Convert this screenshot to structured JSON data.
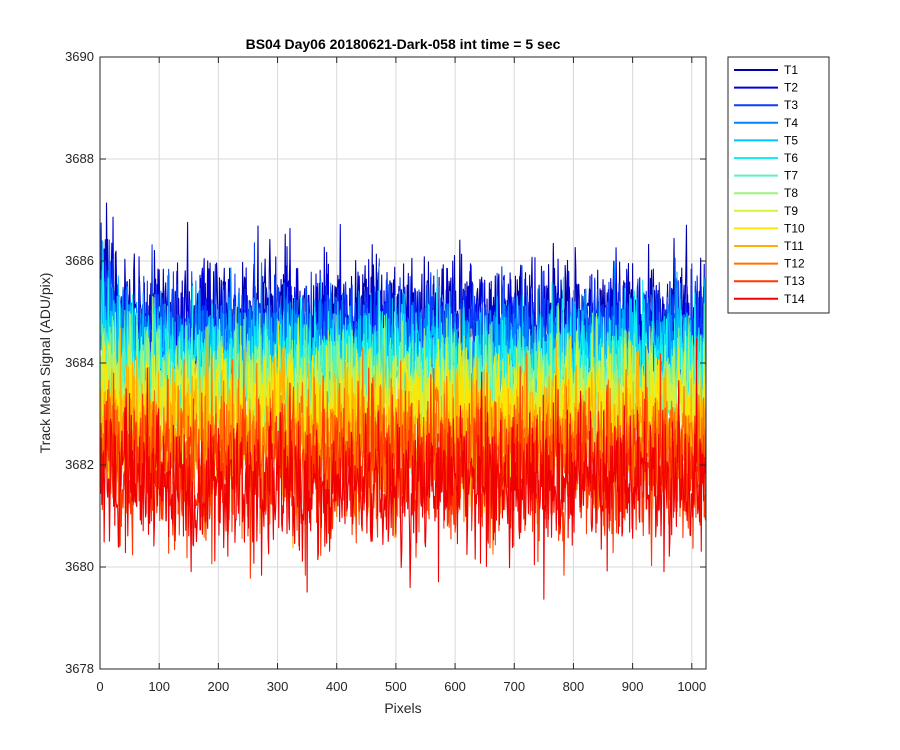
{
  "chart_data": {
    "type": "line",
    "title": "BS04 Day06 20180621-Dark-058 int time = 5 sec",
    "xlabel": "Pixels",
    "ylabel": "Track Mean Signal (ADU/pix)",
    "xlim": [
      0,
      1024
    ],
    "ylim": [
      3678,
      3690
    ],
    "xticks": [
      "0",
      "100",
      "200",
      "300",
      "400",
      "500",
      "600",
      "700",
      "800",
      "900",
      "1000"
    ],
    "yticks": [
      "3678",
      "3680",
      "3682",
      "3684",
      "3686",
      "3688",
      "3690"
    ],
    "grid": true,
    "legend_position": "outside-top-right",
    "x_count": 1024,
    "series": [
      {
        "name": "T1",
        "color": "#0000a8",
        "mean": 3684.9,
        "amplitude": 0.9
      },
      {
        "name": "T2",
        "color": "#0000dc",
        "mean": 3684.7,
        "amplitude": 0.9
      },
      {
        "name": "T3",
        "color": "#0a3cff",
        "mean": 3684.5,
        "amplitude": 0.9
      },
      {
        "name": "T4",
        "color": "#0082ff",
        "mean": 3684.3,
        "amplitude": 0.9
      },
      {
        "name": "T5",
        "color": "#00c0ff",
        "mean": 3684.1,
        "amplitude": 0.9
      },
      {
        "name": "T6",
        "color": "#14f0f0",
        "mean": 3683.9,
        "amplitude": 0.9
      },
      {
        "name": "T7",
        "color": "#5cf2b8",
        "mean": 3683.6,
        "amplitude": 0.9
      },
      {
        "name": "T8",
        "color": "#9ef27a",
        "mean": 3683.4,
        "amplitude": 0.9
      },
      {
        "name": "T9",
        "color": "#d8f23a",
        "mean": 3683.2,
        "amplitude": 0.9
      },
      {
        "name": "T10",
        "color": "#ffe600",
        "mean": 3682.9,
        "amplitude": 1.0
      },
      {
        "name": "T11",
        "color": "#ffb000",
        "mean": 3682.6,
        "amplitude": 1.0
      },
      {
        "name": "T12",
        "color": "#ff7000",
        "mean": 3682.3,
        "amplitude": 1.0
      },
      {
        "name": "T13",
        "color": "#ff3800",
        "mean": 3681.9,
        "amplitude": 1.1
      },
      {
        "name": "T14",
        "color": "#f00000",
        "mean": 3681.6,
        "amplitude": 1.1
      }
    ]
  }
}
